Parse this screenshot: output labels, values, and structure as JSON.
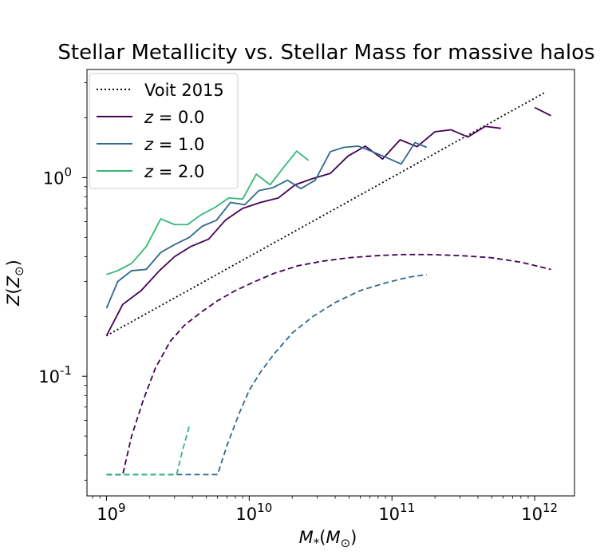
{
  "chart_data": {
    "type": "line",
    "title": "Stellar Metallicity vs. Stellar Mass for massive halos",
    "xlabel": "M_*(M_⊙)",
    "ylabel": "Z(Z_⊙)",
    "xscale": "log",
    "yscale": "log",
    "xlim": [
      730000000.0,
      1900000000000.0
    ],
    "ylim": [
      0.025,
      3.5
    ],
    "x_ticks": [
      {
        "value": 1000000000.0,
        "label": "10^9"
      },
      {
        "value": 10000000000.0,
        "label": "10^10"
      },
      {
        "value": 100000000000.0,
        "label": "10^11"
      },
      {
        "value": 1000000000000.0,
        "label": "10^12"
      }
    ],
    "y_ticks": [
      {
        "value": 0.1,
        "label": "10^-1"
      },
      {
        "value": 1,
        "label": "10^0"
      }
    ],
    "grid": false,
    "legend_position": "top-left",
    "series": [
      {
        "name": "Voit 2015",
        "style": "dotted",
        "color": "#000000",
        "x": [
          1000000000.0,
          1200000000000.0
        ],
        "y": [
          0.16,
          2.7
        ]
      },
      {
        "name": "z = 0.0",
        "style": "solid",
        "color": "#440154",
        "x": [
          1000000000.0,
          1300000000.0,
          1750000000.0,
          2350000000.0,
          3000000000.0,
          3900000000.0,
          5200000000.0,
          6800000000.0,
          9000000000.0,
          12000000000.0,
          16000000000.0,
          21000000000.0,
          28000000000.0,
          37000000000.0,
          49000000000.0,
          65000000000.0,
          86000000000.0,
          114000000000.0,
          150000000000.0,
          200000000000.0,
          260000000000.0,
          340000000000.0,
          450000000000.0,
          580000000000.0,
          null,
          1000000000000.0,
          1300000000000.0
        ],
        "y": [
          0.16,
          0.23,
          0.27,
          0.34,
          0.4,
          0.45,
          0.49,
          0.61,
          0.7,
          0.75,
          0.79,
          0.92,
          0.99,
          1.05,
          1.28,
          1.44,
          1.24,
          1.55,
          1.43,
          1.7,
          1.74,
          1.6,
          1.81,
          1.77,
          null,
          2.25,
          2.05
        ]
      },
      {
        "name": "z = 1.0",
        "style": "solid",
        "color": "#31688e",
        "x": [
          1000000000.0,
          1200000000.0,
          1500000000.0,
          1900000000.0,
          2400000000.0,
          3000000000.0,
          3800000000.0,
          4700000000.0,
          5900000000.0,
          7400000000.0,
          9300000000.0,
          11700000000.0,
          14700000000.0,
          18500000000.0,
          23000000000.0,
          29000000000.0,
          37000000000.0,
          46000000000.0,
          58000000000.0,
          73000000000.0,
          92000000000.0,
          116000000000.0,
          145000000000.0,
          175000000000.0
        ],
        "y": [
          0.22,
          0.3,
          0.34,
          0.345,
          0.42,
          0.46,
          0.5,
          0.57,
          0.61,
          0.75,
          0.73,
          0.86,
          0.89,
          0.97,
          0.88,
          0.97,
          1.35,
          1.42,
          1.44,
          1.35,
          1.26,
          1.17,
          1.5,
          1.42
        ]
      },
      {
        "name": "z = 2.0",
        "style": "solid",
        "color": "#35b779",
        "x": [
          1000000000.0,
          1200000000.0,
          1500000000.0,
          1900000000.0,
          2400000000.0,
          3000000000.0,
          3700000000.0,
          4600000000.0,
          5800000000.0,
          7200000000.0,
          9000000000.0,
          11200000000.0,
          14000000000.0,
          17500000000.0,
          21500000000.0,
          26000000000.0
        ],
        "y": [
          0.325,
          0.34,
          0.37,
          0.45,
          0.62,
          0.58,
          0.58,
          0.65,
          0.71,
          0.79,
          0.78,
          1.04,
          0.92,
          1.13,
          1.36,
          1.22
        ]
      },
      {
        "name": "",
        "style": "dashed",
        "color": "#440154",
        "x": [
          1000000000.0,
          1300000000.0,
          1500000000.0,
          1800000000.0,
          2200000000.0,
          2800000000.0,
          3500000000.0,
          4600000000.0,
          6000000000.0,
          8000000000.0,
          11000000000.0,
          15000000000.0,
          22000000000.0,
          33000000000.0,
          50000000000.0,
          80000000000.0,
          120000000000.0,
          180000000000.0,
          300000000000.0,
          500000000000.0,
          800000000000.0,
          1300000000000.0
        ],
        "y": [
          0.032,
          0.032,
          0.05,
          0.075,
          0.11,
          0.15,
          0.18,
          0.21,
          0.24,
          0.27,
          0.3,
          0.33,
          0.36,
          0.38,
          0.395,
          0.405,
          0.41,
          0.41,
          0.405,
          0.395,
          0.375,
          0.345
        ]
      },
      {
        "name": "",
        "style": "dashed",
        "color": "#31688e",
        "x": [
          1000000000.0,
          6000000000.0,
          7000000000.0,
          8500000000.0,
          10000000000.0,
          12000000000.0,
          15000000000.0,
          20000000000.0,
          28000000000.0,
          40000000000.0,
          60000000000.0,
          90000000000.0,
          130000000000.0,
          175000000000.0
        ],
        "y": [
          0.032,
          0.032,
          0.045,
          0.065,
          0.085,
          0.105,
          0.13,
          0.165,
          0.2,
          0.235,
          0.27,
          0.295,
          0.315,
          0.325
        ]
      },
      {
        "name": "",
        "style": "dashed",
        "color": "#35b779",
        "x": [
          1000000000.0,
          3100000000.0,
          3400000000.0,
          3800000000.0
        ],
        "y": [
          0.032,
          0.032,
          0.042,
          0.056
        ]
      }
    ]
  }
}
